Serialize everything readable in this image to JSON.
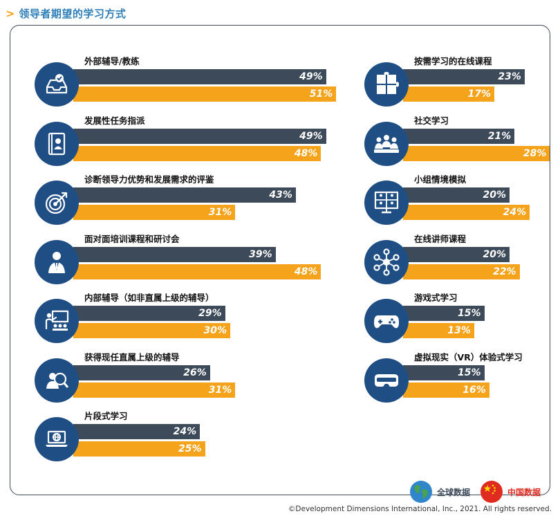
{
  "header": {
    "title": "领导者期望的学习方式"
  },
  "colors": {
    "global": "#3d4a59",
    "china": "#f5a31a",
    "icon": "#1f4e84"
  },
  "legend": {
    "global": "全球数据",
    "china": "中国数据"
  },
  "footer": {
    "copyright": "©Development Dimensions International, Inc., 2021. All rights reserved."
  },
  "chart_data": {
    "type": "bar",
    "series": [
      {
        "name": "全球数据"
      },
      {
        "name": "中国数据"
      }
    ],
    "items": [
      {
        "label": "外部辅导/教练",
        "icon": "inbox-check-icon",
        "global": 49,
        "china": 51,
        "global_label": "49%",
        "china_label": "51%"
      },
      {
        "label": "发展性任务指派",
        "icon": "portfolio-icon",
        "global": 49,
        "china": 48,
        "global_label": "49%",
        "china_label": "48%"
      },
      {
        "label": "诊断领导力优势和发展需求的评鉴",
        "icon": "target-icon",
        "global": 43,
        "china": 31,
        "global_label": "43%",
        "china_label": "31%"
      },
      {
        "label": "面对面培训课程和研讨会",
        "icon": "presenter-icon",
        "global": 39,
        "china": 48,
        "global_label": "39%",
        "china_label": "48%"
      },
      {
        "label": "内部辅导（如非直属上级的辅导）",
        "icon": "classroom-icon",
        "global": 29,
        "china": 30,
        "global_label": "29%",
        "china_label": "30%"
      },
      {
        "label": "获得现任直属上级的辅导",
        "icon": "mentor-search-icon",
        "global": 26,
        "china": 31,
        "global_label": "26%",
        "china_label": "31%"
      },
      {
        "label": "片段式学习",
        "icon": "laptop-globe-icon",
        "global": 24,
        "china": 25,
        "global_label": "24%",
        "china_label": "25%"
      },
      {
        "label": "按需学习的在线课程",
        "icon": "puzzle-icon",
        "global": 23,
        "china": 17,
        "global_label": "23%",
        "china_label": "17%"
      },
      {
        "label": "社交学习",
        "icon": "group-table-icon",
        "global": 21,
        "china": 28,
        "global_label": "21%",
        "china_label": "28%"
      },
      {
        "label": "小组情境模拟",
        "icon": "video-conference-icon",
        "global": 20,
        "china": 24,
        "global_label": "20%",
        "china_label": "24%"
      },
      {
        "label": "在线讲师课程",
        "icon": "network-icon",
        "global": 20,
        "china": 22,
        "global_label": "20%",
        "china_label": "22%"
      },
      {
        "label": "游戏式学习",
        "icon": "gamepad-icon",
        "global": 15,
        "china": 13,
        "global_label": "15%",
        "china_label": "13%"
      },
      {
        "label": "虚拟现实（VR）体验式学习",
        "icon": "vr-headset-icon",
        "global": 15,
        "china": 16,
        "global_label": "15%",
        "china_label": "16%"
      }
    ]
  }
}
